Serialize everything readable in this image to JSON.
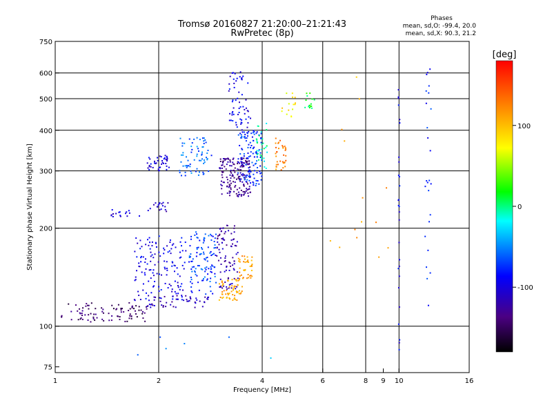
{
  "header": {
    "title_line1": "Tromsø 20160827 21:20:00–21:21:43",
    "title_line2": "RwPretec (8p)"
  },
  "phases": {
    "heading": "Phases",
    "line_o": "mean, sd,O: -99.4, 20.0",
    "line_x": "mean, sd,X:  90.3, 21.2"
  },
  "chart_data": {
    "type": "scatter",
    "xlabel": "Frequency [MHz]",
    "ylabel": "Stationary phase Virtual Height [km]",
    "x_scale": "log",
    "y_scale": "log",
    "xlim": [
      1,
      16
    ],
    "ylim": [
      72,
      750
    ],
    "x_ticks": [
      1,
      2,
      4,
      6,
      8,
      10,
      16
    ],
    "x_minor_ticks": [
      9
    ],
    "y_ticks": [
      75,
      100,
      200,
      300,
      400,
      500,
      600,
      750
    ],
    "x_gridlines": [
      2,
      4,
      6,
      8,
      10
    ],
    "y_gridlines": [
      100,
      200,
      300,
      400,
      500,
      600
    ],
    "grid": true,
    "colorbar": {
      "unit": "[deg]",
      "range": [
        -180,
        180
      ],
      "ticks": [
        100,
        0,
        -100
      ],
      "colormap": [
        "#000000",
        "#4b0082",
        "#0000ff",
        "#00ffff",
        "#00ff00",
        "#ffff00",
        "#ff8000",
        "#ff0000"
      ]
    },
    "clusters": [
      {
        "f": [
          1.04,
          1.85
        ],
        "h": [
          103,
          118
        ],
        "phase": -145,
        "n": 90
      },
      {
        "f": [
          1.85,
          2.8
        ],
        "h": [
          114,
          125
        ],
        "phase": -115,
        "n": 50
      },
      {
        "f": [
          1.7,
          2.4
        ],
        "h": [
          120,
          190
        ],
        "phase": -95,
        "n": 140
      },
      {
        "f": [
          2.45,
          2.95
        ],
        "h": [
          125,
          195
        ],
        "phase": -70,
        "n": 110
      },
      {
        "f": [
          2.95,
          3.4
        ],
        "h": [
          130,
          205
        ],
        "phase": -120,
        "n": 90
      },
      {
        "f": [
          3.0,
          3.5
        ],
        "h": [
          120,
          140
        ],
        "phase": 110,
        "n": 60
      },
      {
        "f": [
          3.4,
          3.75
        ],
        "h": [
          140,
          165
        ],
        "phase": 115,
        "n": 40
      },
      {
        "f": [
          1.45,
          1.8
        ],
        "h": [
          215,
          228
        ],
        "phase": -100,
        "n": 16
      },
      {
        "f": [
          1.85,
          2.15
        ],
        "h": [
          225,
          240
        ],
        "phase": -110,
        "n": 18
      },
      {
        "f": [
          1.85,
          2.15
        ],
        "h": [
          300,
          335
        ],
        "phase": -100,
        "n": 40
      },
      {
        "f": [
          2.3,
          2.85
        ],
        "h": [
          290,
          380
        ],
        "phase": -60,
        "n": 70
      },
      {
        "f": [
          3.0,
          3.7
        ],
        "h": [
          250,
          330
        ],
        "phase": -130,
        "n": 170
      },
      {
        "f": [
          3.4,
          4.0
        ],
        "h": [
          270,
          400
        ],
        "phase": -75,
        "n": 120
      },
      {
        "f": [
          3.2,
          3.7
        ],
        "h": [
          400,
          610
        ],
        "phase": -95,
        "n": 60
      },
      {
        "f": [
          3.85,
          4.15
        ],
        "h": [
          300,
          420
        ],
        "phase": -10,
        "n": 30
      },
      {
        "f": [
          4.35,
          4.7
        ],
        "h": [
          300,
          380
        ],
        "phase": 125,
        "n": 35
      },
      {
        "f": [
          4.5,
          5.0
        ],
        "h": [
          440,
          520
        ],
        "phase": 80,
        "n": 15
      },
      {
        "f": [
          5.3,
          5.7
        ],
        "h": [
          460,
          520
        ],
        "phase": 15,
        "n": 15
      },
      {
        "f": [
          9.95,
          10.05
        ],
        "h": [
          80,
          620
        ],
        "phase": -95,
        "n": 28
      },
      {
        "f": [
          11.9,
          12.4
        ],
        "h": [
          110,
          620
        ],
        "phase": -80,
        "n": 25
      },
      {
        "f": [
          6.2,
          9.5
        ],
        "h": [
          160,
          640
        ],
        "phase": 110,
        "n": 14
      },
      {
        "f": [
          1.3,
          5.5
        ],
        "h": [
          78,
          100
        ],
        "phase": -50,
        "n": 6
      }
    ]
  }
}
